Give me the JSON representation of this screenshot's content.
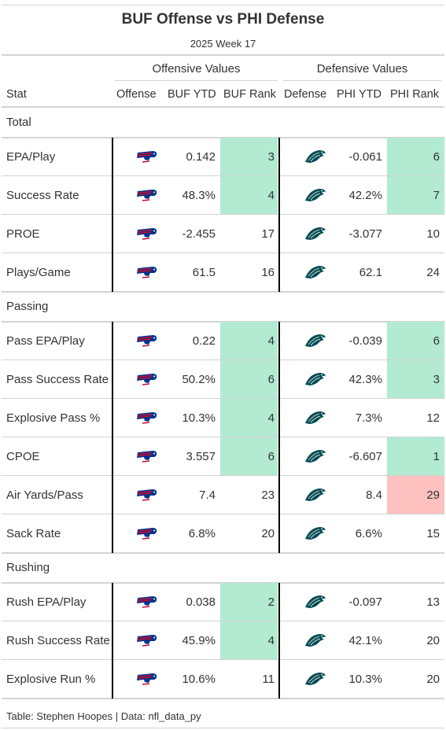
{
  "chart_data": {
    "type": "table",
    "title": "BUF Offense vs PHI Defense",
    "subtitle": "2025 Week 17",
    "spanners": [
      "Offensive Values",
      "Defensive Values"
    ],
    "columns": [
      "Stat",
      "Offense",
      "BUF YTD",
      "BUF Rank",
      "Defense",
      "PHI YTD",
      "PHI Rank"
    ],
    "offense_logo": "bills-logo-icon",
    "defense_logo": "eagles-logo-icon",
    "colors": {
      "good": "#b2ead2",
      "bad": "#ffc0c0",
      "rule": "#d3d3d3",
      "divider": "#000000"
    },
    "groups": [
      {
        "label": "Total",
        "rows": [
          {
            "stat": "EPA/Play",
            "buf_ytd": "0.142",
            "buf_rank": 3,
            "phi_ytd": "-0.061",
            "phi_rank": 6
          },
          {
            "stat": "Success Rate",
            "buf_ytd": "48.3%",
            "buf_rank": 4,
            "phi_ytd": "42.2%",
            "phi_rank": 7
          },
          {
            "stat": "PROE",
            "buf_ytd": "-2.455",
            "buf_rank": 17,
            "phi_ytd": "-3.077",
            "phi_rank": 10
          },
          {
            "stat": "Plays/Game",
            "buf_ytd": "61.5",
            "buf_rank": 16,
            "phi_ytd": "62.1",
            "phi_rank": 24
          }
        ]
      },
      {
        "label": "Passing",
        "rows": [
          {
            "stat": "Pass EPA/Play",
            "buf_ytd": "0.22",
            "buf_rank": 4,
            "phi_ytd": "-0.039",
            "phi_rank": 6
          },
          {
            "stat": "Pass Success Rate",
            "buf_ytd": "50.2%",
            "buf_rank": 6,
            "phi_ytd": "42.3%",
            "phi_rank": 3
          },
          {
            "stat": "Explosive Pass %",
            "buf_ytd": "10.3%",
            "buf_rank": 4,
            "phi_ytd": "7.3%",
            "phi_rank": 12
          },
          {
            "stat": "CPOE",
            "buf_ytd": "3.557",
            "buf_rank": 6,
            "phi_ytd": "-6.607",
            "phi_rank": 1
          },
          {
            "stat": "Air Yards/Pass",
            "buf_ytd": "7.4",
            "buf_rank": 23,
            "phi_ytd": "8.4",
            "phi_rank": 29
          },
          {
            "stat": "Sack Rate",
            "buf_ytd": "6.8%",
            "buf_rank": 20,
            "phi_ytd": "6.6%",
            "phi_rank": 15
          }
        ]
      },
      {
        "label": "Rushing",
        "rows": [
          {
            "stat": "Rush EPA/Play",
            "buf_ytd": "0.038",
            "buf_rank": 2,
            "phi_ytd": "-0.097",
            "phi_rank": 13
          },
          {
            "stat": "Rush Success Rate",
            "buf_ytd": "45.9%",
            "buf_rank": 4,
            "phi_ytd": "42.1%",
            "phi_rank": 20
          },
          {
            "stat": "Explosive Run %",
            "buf_ytd": "10.6%",
            "buf_rank": 11,
            "phi_ytd": "10.3%",
            "phi_rank": 20
          }
        ]
      }
    ],
    "footer": "Table: Stephen Hoopes | Data: nfl_data_py"
  }
}
